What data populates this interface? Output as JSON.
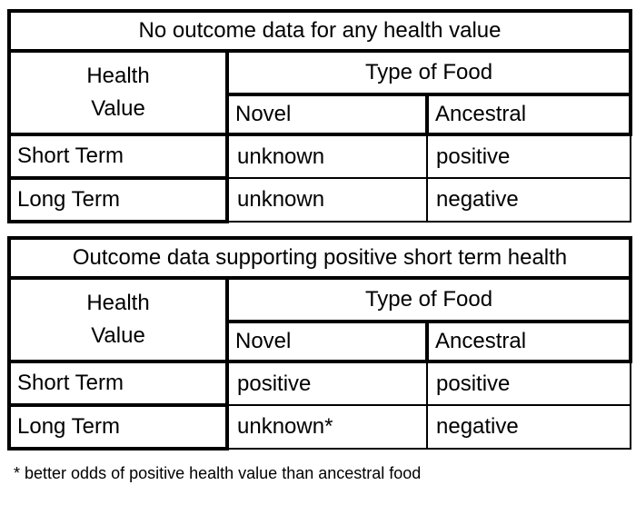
{
  "page": {
    "colors": {
      "background": "#ffffff",
      "border": "#000000",
      "text": "#000000"
    }
  },
  "tables": [
    {
      "title": "No outcome data for any health value",
      "header": {
        "row_axis": "Health Value",
        "row_axis_lines": [
          "Health",
          "Value"
        ],
        "col_group": "Type of Food",
        "columns": [
          "Novel",
          "Ancestral"
        ]
      },
      "rows": [
        {
          "label": "Short Term",
          "novel": "unknown",
          "ancestral": "positive"
        },
        {
          "label": "Long Term",
          "novel": "unknown",
          "ancestral": "negative"
        }
      ]
    },
    {
      "title": "Outcome data supporting positive short term health",
      "header": {
        "row_axis": "Health Value",
        "row_axis_lines": [
          "Health",
          "Value"
        ],
        "col_group": "Type of Food",
        "columns": [
          "Novel",
          "Ancestral"
        ]
      },
      "rows": [
        {
          "label": "Short Term",
          "novel": "positive",
          "ancestral": "positive"
        },
        {
          "label": "Long Term",
          "novel": "unknown*",
          "ancestral": "negative"
        }
      ]
    }
  ],
  "footnote": "* better odds of positive health value than ancestral food"
}
